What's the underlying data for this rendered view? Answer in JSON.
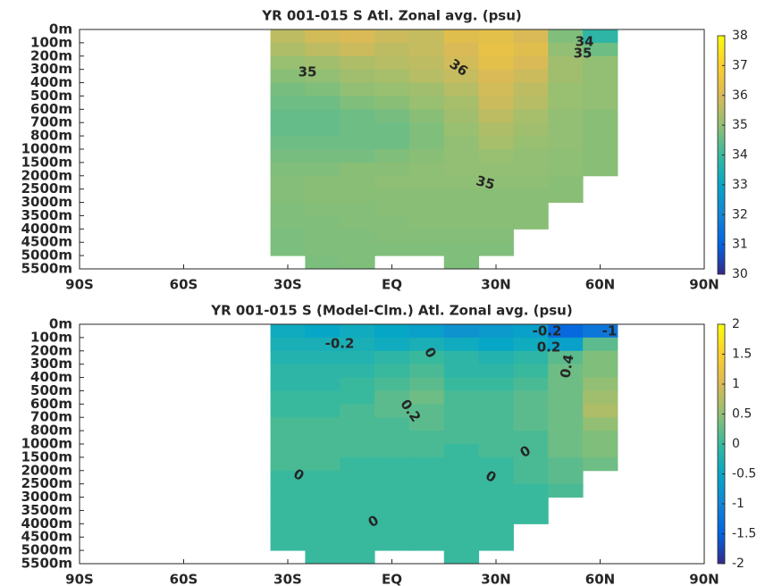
{
  "chart_data": [
    {
      "type": "heatmap",
      "title": "YR 001-015 S Atl. Zonal avg. (psu)",
      "xlim": [
        -90,
        90
      ],
      "xticks": [
        {
          "value": -90,
          "label": "90S"
        },
        {
          "value": -60,
          "label": "60S"
        },
        {
          "value": -30,
          "label": "30S"
        },
        {
          "value": 0,
          "label": "EQ"
        },
        {
          "value": 30,
          "label": "30N"
        },
        {
          "value": 60,
          "label": "60N"
        },
        {
          "value": 90,
          "label": "90N"
        }
      ],
      "y_categories": [
        "0m",
        "100m",
        "200m",
        "300m",
        "400m",
        "500m",
        "600m",
        "700m",
        "800m",
        "1000m",
        "1500m",
        "2000m",
        "2500m",
        "3000m",
        "3500m",
        "4000m",
        "4500m",
        "5000m",
        "5500m"
      ],
      "x_bins": [
        -35,
        -25,
        -15,
        -5,
        5,
        15,
        25,
        35,
        45,
        55,
        65
      ],
      "values": [
        [
          35.6,
          35.9,
          36.0,
          35.8,
          35.7,
          36.2,
          36.3,
          36.0,
          34.8,
          33.8
        ],
        [
          35.4,
          35.6,
          35.8,
          35.6,
          35.7,
          36.0,
          36.4,
          36.2,
          35.0,
          34.6
        ],
        [
          35.1,
          35.2,
          35.4,
          35.5,
          35.6,
          35.9,
          36.3,
          36.0,
          35.2,
          35.0
        ],
        [
          34.9,
          35.0,
          35.2,
          35.3,
          35.5,
          35.7,
          36.0,
          35.8,
          35.2,
          35.0
        ],
        [
          34.7,
          34.8,
          35.0,
          35.1,
          35.2,
          35.5,
          35.9,
          35.6,
          35.1,
          35.0
        ],
        [
          34.6,
          34.6,
          34.8,
          34.9,
          35.1,
          35.3,
          35.8,
          35.5,
          35.1,
          35.0
        ],
        [
          34.5,
          34.5,
          34.6,
          34.7,
          34.9,
          35.2,
          35.6,
          35.3,
          35.0,
          34.9
        ],
        [
          34.5,
          34.5,
          34.6,
          34.6,
          34.8,
          35.1,
          35.4,
          35.2,
          35.0,
          34.9
        ],
        [
          34.6,
          34.6,
          34.6,
          34.6,
          34.8,
          35.0,
          35.3,
          35.1,
          35.0,
          34.9
        ],
        [
          34.7,
          34.7,
          34.7,
          34.8,
          34.9,
          35.0,
          35.1,
          35.0,
          34.95,
          34.9
        ],
        [
          34.8,
          34.8,
          34.9,
          34.9,
          34.95,
          35.0,
          35.0,
          35.0,
          34.95,
          34.9
        ],
        [
          34.85,
          34.9,
          34.9,
          34.95,
          34.95,
          34.95,
          34.95,
          34.95,
          34.9,
          null
        ],
        [
          34.85,
          34.9,
          34.9,
          34.9,
          34.9,
          34.9,
          34.9,
          34.9,
          34.9,
          null
        ],
        [
          34.8,
          34.85,
          34.85,
          34.9,
          34.9,
          34.9,
          34.9,
          34.9,
          null,
          null
        ],
        [
          34.8,
          34.8,
          34.85,
          34.85,
          34.9,
          34.9,
          34.9,
          34.9,
          null,
          null
        ],
        [
          34.75,
          34.8,
          34.8,
          34.85,
          34.85,
          34.85,
          34.85,
          null,
          null,
          null
        ],
        [
          34.75,
          34.8,
          34.8,
          34.8,
          34.8,
          34.8,
          34.8,
          null,
          null,
          null
        ],
        [
          null,
          34.75,
          34.8,
          null,
          null,
          34.8,
          null,
          null,
          null,
          null
        ]
      ],
      "clim": [
        30,
        38
      ],
      "cticks": [
        30,
        31,
        32,
        33,
        34,
        35,
        36,
        37,
        38
      ],
      "annotations": [
        "35",
        "36",
        "34",
        "35",
        "35"
      ]
    },
    {
      "type": "heatmap",
      "title": "YR 001-015 S (Model-Clm.) Atl. Zonal avg. (psu)",
      "xlim": [
        -90,
        90
      ],
      "xticks": [
        {
          "value": -90,
          "label": "90S"
        },
        {
          "value": -60,
          "label": "60S"
        },
        {
          "value": -30,
          "label": "30S"
        },
        {
          "value": 0,
          "label": "EQ"
        },
        {
          "value": 30,
          "label": "30N"
        },
        {
          "value": 60,
          "label": "60N"
        },
        {
          "value": 90,
          "label": "90N"
        }
      ],
      "y_categories": [
        "0m",
        "100m",
        "200m",
        "300m",
        "400m",
        "500m",
        "600m",
        "700m",
        "800m",
        "1000m",
        "1500m",
        "2000m",
        "2500m",
        "3000m",
        "3500m",
        "4000m",
        "4500m",
        "5000m",
        "5500m"
      ],
      "x_bins": [
        -35,
        -25,
        -15,
        -5,
        5,
        15,
        25,
        35,
        45,
        55,
        65
      ],
      "values": [
        [
          -0.4,
          -0.5,
          -0.4,
          -0.5,
          -0.6,
          -0.8,
          -0.7,
          -0.6,
          -1.4,
          -1.2
        ],
        [
          -0.3,
          -0.3,
          -0.3,
          -0.4,
          -0.3,
          -0.4,
          -0.5,
          -0.4,
          -0.6,
          0.2
        ],
        [
          -0.2,
          -0.2,
          -0.2,
          -0.1,
          0.0,
          -0.1,
          -0.2,
          -0.1,
          0.2,
          0.4
        ],
        [
          -0.1,
          -0.1,
          -0.1,
          0.0,
          0.1,
          -0.1,
          -0.1,
          0.0,
          0.3,
          0.4
        ],
        [
          -0.1,
          -0.1,
          0.0,
          0.1,
          0.2,
          0.0,
          0.0,
          0.1,
          0.3,
          0.5
        ],
        [
          0.0,
          0.0,
          0.0,
          0.2,
          0.3,
          0.1,
          0.1,
          0.2,
          0.3,
          0.6
        ],
        [
          0.0,
          0.0,
          0.1,
          0.2,
          0.2,
          0.1,
          0.1,
          0.2,
          0.3,
          0.7
        ],
        [
          0.1,
          0.1,
          0.1,
          0.1,
          0.2,
          0.1,
          0.1,
          0.2,
          0.3,
          0.5
        ],
        [
          0.1,
          0.1,
          0.1,
          0.1,
          0.1,
          0.1,
          0.1,
          0.1,
          0.3,
          0.4
        ],
        [
          0.1,
          0.1,
          0.1,
          0.1,
          0.1,
          0.0,
          0.1,
          0.1,
          0.3,
          0.4
        ],
        [
          0.1,
          0.1,
          0.0,
          0.0,
          0.0,
          0.0,
          0.0,
          0.1,
          0.2,
          0.3
        ],
        [
          0.0,
          0.0,
          0.0,
          0.0,
          0.0,
          0.0,
          0.0,
          0.1,
          0.2,
          null
        ],
        [
          0.0,
          0.0,
          0.0,
          0.0,
          0.0,
          0.0,
          0.0,
          0.0,
          0.1,
          null
        ],
        [
          0.0,
          0.0,
          0.0,
          0.0,
          0.0,
          0.0,
          0.0,
          0.0,
          null,
          null
        ],
        [
          0.0,
          0.0,
          0.0,
          0.0,
          0.0,
          0.0,
          0.0,
          0.0,
          null,
          null
        ],
        [
          0.0,
          0.0,
          0.0,
          0.0,
          0.0,
          0.0,
          0.0,
          null,
          null,
          null
        ],
        [
          0.0,
          0.0,
          0.0,
          0.0,
          0.0,
          0.0,
          0.0,
          null,
          null,
          null
        ],
        [
          null,
          0.0,
          0.0,
          null,
          null,
          0.0,
          null,
          null,
          null,
          null
        ]
      ],
      "clim": [
        -2,
        2
      ],
      "cticks": [
        -2,
        -1.5,
        -1,
        -0.5,
        0,
        0.5,
        1,
        1.5,
        2
      ],
      "annotations": [
        "-0.2",
        "0",
        "0.2",
        "-0.2",
        "0.2",
        "0.4",
        "0",
        "0",
        "0",
        "0",
        "-1"
      ]
    }
  ]
}
